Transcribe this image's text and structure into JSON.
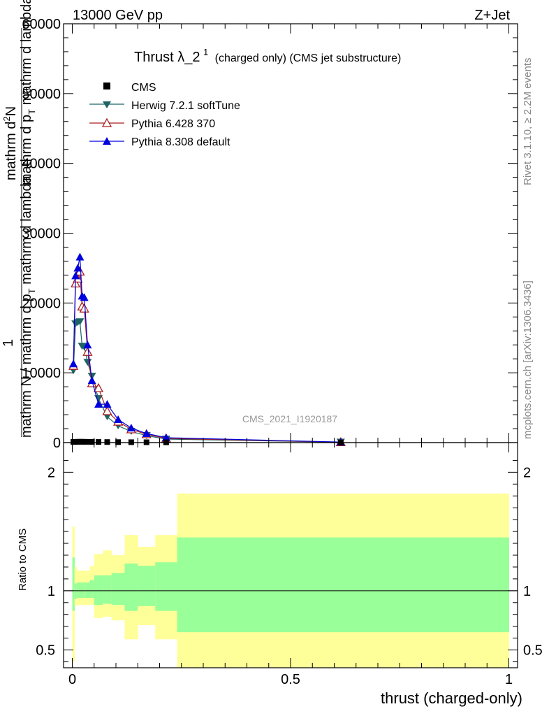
{
  "header": {
    "left": "13000 GeV pp",
    "right": "Z+Jet"
  },
  "title": {
    "main": "Thrust λ_2",
    "sup": "1",
    "sub": "(charged only) (CMS jet substructure)"
  },
  "side_labels": {
    "rivet": "Rivet 3.1.10, ≥ 2.2M events",
    "mcplots": "mcplots.cern.ch [arXiv:1306.3436]"
  },
  "watermark": "CMS_2021_I1920187",
  "main_ylabel": {
    "numerator_line1": "mathrm d",
    "numerator_line1_sup": "2",
    "numerator_line1_end": "N",
    "denominator_line1": "mathrm d p",
    "denominator_line1_sub": "T",
    "denominator_line1_end": " mathrm d lambda",
    "one": "1",
    "bottom": "mathrm N / mathrm d p",
    "bottom_sub": "T",
    "bottom_end": " mathrm d lambda"
  },
  "ratio_ylabel": "Ratio to CMS",
  "xlabel": "thrust (charged-only)",
  "legend": [
    {
      "label": "CMS",
      "color": "#000000",
      "marker": "square"
    },
    {
      "label": "Herwig 7.2.1 softTune",
      "color": "#1e6464",
      "marker": "triangle-down"
    },
    {
      "label": "Pythia 6.428 370",
      "color": "#aa1e1e",
      "marker": "triangle-up-open"
    },
    {
      "label": "Pythia 8.308 default",
      "color": "#0000dd",
      "marker": "triangle-up"
    }
  ],
  "chart_data": {
    "type": "line",
    "x_range": [
      -0.02,
      1.02
    ],
    "main": {
      "ylim": [
        0,
        60000
      ],
      "y_ticks": [
        0,
        10000,
        20000,
        30000,
        40000,
        50000,
        60000
      ],
      "y_tick_labels": [
        "0",
        "10000",
        "20000",
        "30000",
        "40000",
        "50000",
        "60000"
      ],
      "series": [
        {
          "name": "CMS",
          "x": [
            0.0025,
            0.0075,
            0.0125,
            0.0175,
            0.0225,
            0.0275,
            0.035,
            0.045,
            0.06,
            0.08,
            0.105,
            0.135,
            0.17,
            0.215,
            0.615
          ],
          "y": [
            100,
            110,
            115,
            120,
            118,
            115,
            110,
            100,
            90,
            80,
            70,
            60,
            50,
            40,
            20
          ]
        },
        {
          "name": "Herwig 7.2.1 softTune",
          "x": [
            0.0025,
            0.0075,
            0.0125,
            0.0175,
            0.0225,
            0.0275,
            0.035,
            0.045,
            0.06,
            0.08,
            0.105,
            0.135,
            0.17,
            0.215,
            0.615
          ],
          "y": [
            10300,
            17000,
            17200,
            17300,
            13800,
            13700,
            11500,
            9500,
            6300,
            3700,
            2400,
            1600,
            1000,
            500,
            60
          ]
        },
        {
          "name": "Pythia 6.428 370",
          "x": [
            0.0025,
            0.0075,
            0.0125,
            0.0175,
            0.0225,
            0.0275,
            0.035,
            0.045,
            0.06,
            0.08,
            0.105,
            0.135,
            0.17,
            0.215,
            0.615
          ],
          "y": [
            11000,
            22800,
            23500,
            24500,
            19500,
            19200,
            13000,
            8500,
            7800,
            4500,
            3000,
            1900,
            1200,
            600,
            70
          ]
        },
        {
          "name": "Pythia 8.308 default",
          "x": [
            0.0025,
            0.0075,
            0.0125,
            0.0175,
            0.0225,
            0.0275,
            0.035,
            0.045,
            0.06,
            0.08,
            0.105,
            0.135,
            0.17,
            0.215,
            0.615
          ],
          "y": [
            11300,
            23900,
            25000,
            26600,
            21000,
            20800,
            14000,
            8900,
            5500,
            5500,
            3300,
            2100,
            1300,
            700,
            80
          ]
        }
      ]
    },
    "ratio": {
      "ylim": [
        0.35,
        2.25
      ],
      "y_ticks": [
        0.5,
        1,
        2
      ],
      "y_tick_labels": [
        "0.5",
        "1",
        "2"
      ],
      "bin_edges": [
        0,
        0.005,
        0.01,
        0.015,
        0.02,
        0.025,
        0.03,
        0.04,
        0.05,
        0.07,
        0.09,
        0.12,
        0.15,
        0.19,
        0.24,
        1.0
      ],
      "yellow_lo": [
        0.4,
        0.87,
        0.88,
        0.88,
        0.88,
        0.88,
        0.88,
        0.88,
        0.77,
        0.78,
        0.75,
        0.59,
        0.71,
        0.59,
        0.35
      ],
      "yellow_hi": [
        1.54,
        1.2,
        1.17,
        1.17,
        1.17,
        1.17,
        1.17,
        1.21,
        1.31,
        1.34,
        1.3,
        1.47,
        1.37,
        1.47,
        1.82
      ],
      "green_lo": [
        0.83,
        0.93,
        0.94,
        0.94,
        0.94,
        0.94,
        0.94,
        0.94,
        0.88,
        0.89,
        0.88,
        0.83,
        0.87,
        0.83,
        0.65
      ],
      "green_hi": [
        1.28,
        1.06,
        1.07,
        1.07,
        1.07,
        1.07,
        1.07,
        1.09,
        1.13,
        1.13,
        1.15,
        1.23,
        1.21,
        1.24,
        1.45
      ]
    },
    "x_ticks": [
      0,
      0.5,
      1
    ],
    "x_tick_labels": [
      "0",
      "0.5",
      "1"
    ],
    "band_colors": {
      "yellow": "#ffff99",
      "green": "#99ff99"
    }
  }
}
